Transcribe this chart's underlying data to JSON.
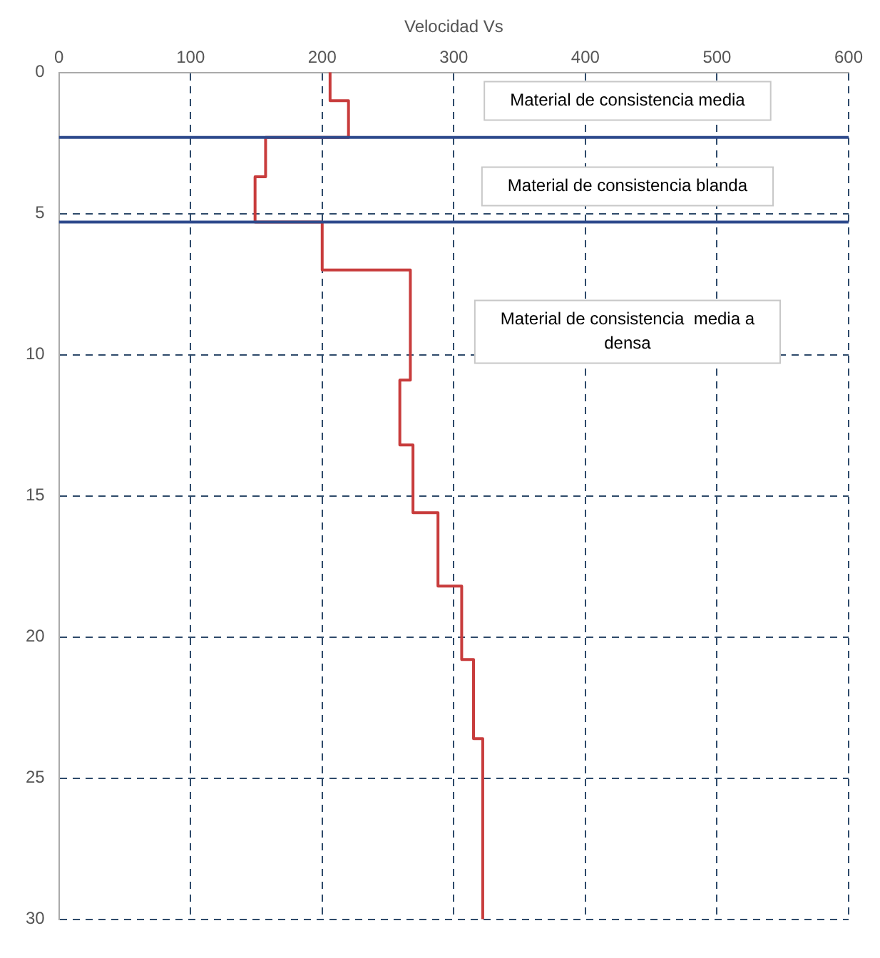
{
  "chart_data": {
    "type": "line",
    "xlabel": "Velocidad Vs",
    "xlim": [
      0,
      600
    ],
    "xticks": [
      0,
      100,
      200,
      300,
      400,
      500,
      600
    ],
    "ylim": [
      30,
      0
    ],
    "yticks": [
      0,
      5,
      10,
      15,
      20,
      25,
      30
    ],
    "grid": true,
    "line_style": "solid",
    "series": [
      {
        "color": "#c83c3c",
        "x": [
          206,
          206,
          220,
          220,
          157,
          157,
          149,
          149,
          200,
          200,
          267,
          267,
          259,
          259,
          269,
          269,
          288,
          288,
          306,
          306,
          315,
          315,
          322,
          322
        ],
        "values": [
          0,
          1.0,
          1.0,
          2.3,
          2.3,
          3.7,
          3.7,
          5.3,
          5.3,
          7.0,
          7.0,
          10.9,
          10.9,
          13.2,
          13.2,
          15.6,
          15.6,
          18.2,
          18.2,
          20.8,
          20.8,
          23.6,
          23.6,
          30
        ]
      }
    ],
    "ref_lines": [
      {
        "axis": "y",
        "value": 2.3,
        "color": "#2e4a8c",
        "line_style": "solid"
      },
      {
        "axis": "y",
        "value": 5.3,
        "color": "#2e4a8c",
        "line_style": "solid"
      }
    ],
    "annotations": [
      "Material de consistencia media",
      "Material de consistencia blanda",
      "Material de consistencia  media a densa"
    ]
  }
}
